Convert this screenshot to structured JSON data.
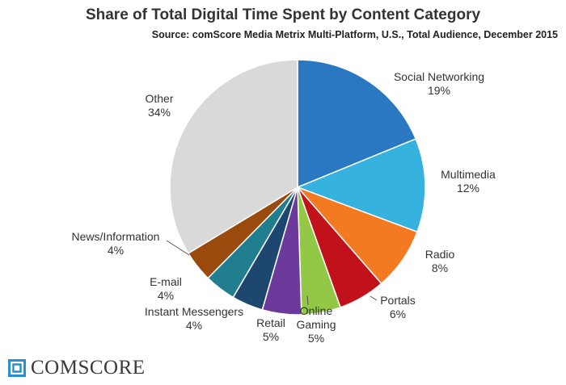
{
  "chart_data": {
    "type": "pie",
    "title": "Share of Total Digital Time Spent by Content Category",
    "subtitle": "Source: comScore Media Metrix Multi-Platform, U.S., Total Audience, December 2015",
    "slices": [
      {
        "name": "Social Networking",
        "value": 19,
        "label": "19%",
        "color": "#2a77c2"
      },
      {
        "name": "Multimedia",
        "value": 12,
        "label": "12%",
        "color": "#35b3de"
      },
      {
        "name": "Radio",
        "value": 8,
        "label": "8%",
        "color": "#f37a21"
      },
      {
        "name": "Portals",
        "value": 6,
        "label": "6%",
        "color": "#c1121c"
      },
      {
        "name": "Online Gaming",
        "value": 5,
        "label": "5%",
        "color": "#92c846"
      },
      {
        "name": "Retail",
        "value": 5,
        "label": "5%",
        "color": "#6b3a9a"
      },
      {
        "name": "Instant Messengers",
        "value": 4,
        "label": "4%",
        "color": "#1d476e"
      },
      {
        "name": "E-mail",
        "value": 4,
        "label": "4%",
        "color": "#217e8e"
      },
      {
        "name": "News/Information",
        "value": 4,
        "label": "4%",
        "color": "#9a4a0d"
      },
      {
        "name": "Other",
        "value": 34,
        "label": "34%",
        "color": "#d9d9d9"
      }
    ]
  },
  "logo": {
    "text": "comScore",
    "display_text": "COMSCORE",
    "color": "#2a8fd0"
  }
}
